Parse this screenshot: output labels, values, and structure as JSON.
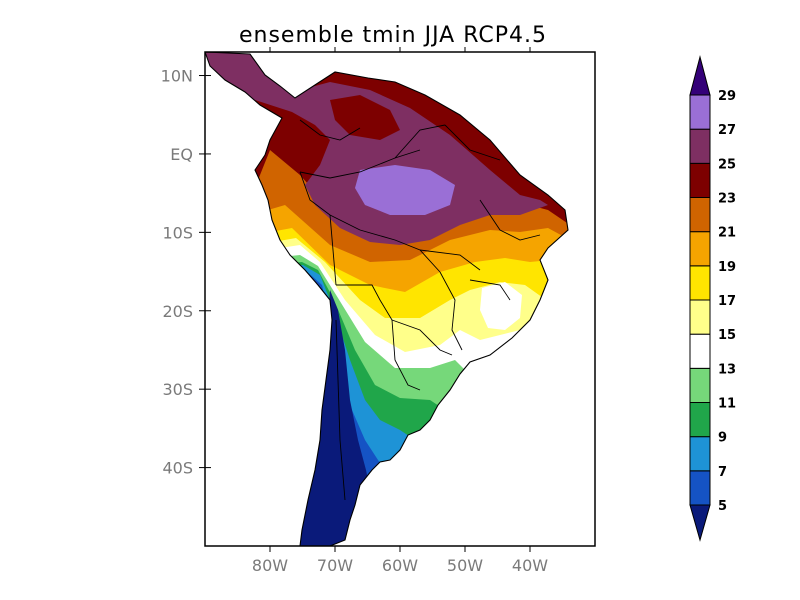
{
  "title": "ensemble tmin JJA RCP4.5",
  "map": {
    "lon_range": [
      -90,
      -30
    ],
    "lat_range": [
      -50,
      13
    ],
    "lon_ticks": [
      {
        "label": "80W",
        "lon": -80
      },
      {
        "label": "70W",
        "lon": -70
      },
      {
        "label": "60W",
        "lon": -60
      },
      {
        "label": "50W",
        "lon": -50
      },
      {
        "label": "40W",
        "lon": -40
      }
    ],
    "lat_ticks": [
      {
        "label": "10N",
        "lat": 10
      },
      {
        "label": "EQ",
        "lat": 0
      },
      {
        "label": "10S",
        "lat": -10
      },
      {
        "label": "20S",
        "lat": -20
      },
      {
        "label": "30S",
        "lat": -30
      },
      {
        "label": "40S",
        "lat": -40
      }
    ]
  },
  "colorbar": {
    "levels": [
      5,
      7,
      9,
      11,
      13,
      15,
      17,
      19,
      21,
      23,
      25,
      27,
      29
    ],
    "colors": [
      "#0a1a7a",
      "#1553c4",
      "#1e93d6",
      "#20a64a",
      "#76d87a",
      "#ffffff",
      "#ffff8a",
      "#ffe500",
      "#f5a400",
      "#d06400",
      "#7d0000",
      "#7e2f62",
      "#9a6fd6",
      "#340078"
    ],
    "labels": [
      "5",
      "7",
      "9",
      "11",
      "13",
      "15",
      "17",
      "19",
      "21",
      "23",
      "25",
      "27",
      "29"
    ]
  },
  "colors": {
    "frame": "#000000",
    "land_outline": "#000000",
    "ocean": "#ffffff"
  }
}
